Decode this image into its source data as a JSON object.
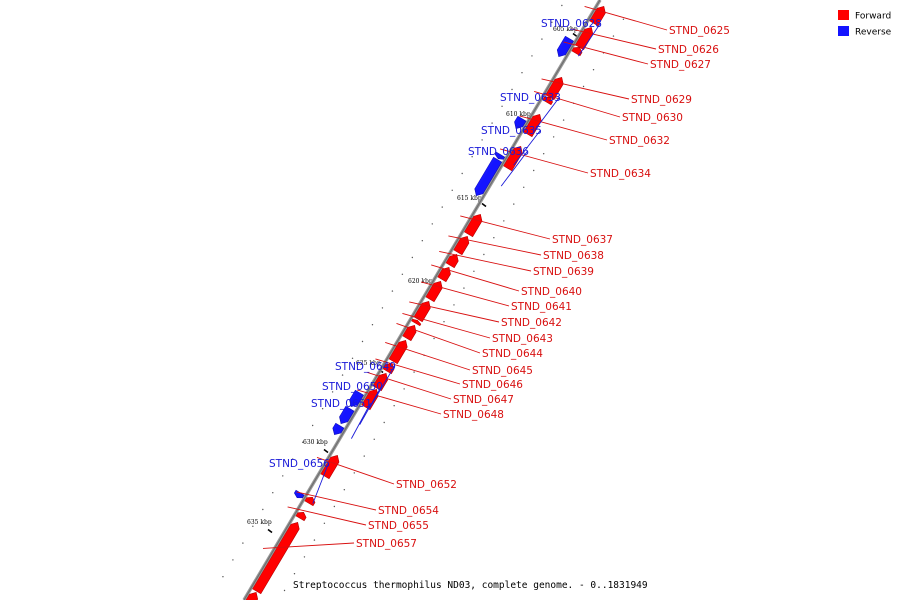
{
  "legend": [
    {
      "label": "Forward",
      "color": "#ff0000"
    },
    {
      "label": "Reverse",
      "color": "#1414ff"
    }
  ],
  "footer_title": "Streptococcus thermophilus ND03, complete genome. - 0..1831949",
  "ticks": [
    "605 kbp",
    "610 kbp",
    "615 kbp",
    "620 kbp",
    "625 kbp",
    "630 kbp",
    "635 kbp"
  ],
  "genes": [
    {
      "id": "STND_0625",
      "strand": "forward"
    },
    {
      "id": "STND_0626",
      "strand": "forward"
    },
    {
      "id": "STND_0627",
      "strand": "forward"
    },
    {
      "id": "STND_0628",
      "strand": "reverse"
    },
    {
      "id": "STND_0629",
      "strand": "forward"
    },
    {
      "id": "STND_0630",
      "strand": "forward"
    },
    {
      "id": "STND_0632",
      "strand": "forward"
    },
    {
      "id": "STND_0633",
      "strand": "reverse"
    },
    {
      "id": "STND_0634",
      "strand": "forward"
    },
    {
      "id": "STND_0635",
      "strand": "reverse"
    },
    {
      "id": "STND_0636",
      "strand": "reverse"
    },
    {
      "id": "STND_0637",
      "strand": "forward"
    },
    {
      "id": "STND_0638",
      "strand": "forward"
    },
    {
      "id": "STND_0639",
      "strand": "forward"
    },
    {
      "id": "STND_0640",
      "strand": "forward"
    },
    {
      "id": "STND_0641",
      "strand": "forward"
    },
    {
      "id": "STND_0642",
      "strand": "forward"
    },
    {
      "id": "STND_0643",
      "strand": "forward"
    },
    {
      "id": "STND_0644",
      "strand": "forward"
    },
    {
      "id": "STND_0645",
      "strand": "forward"
    },
    {
      "id": "STND_0646",
      "strand": "forward"
    },
    {
      "id": "STND_0647",
      "strand": "forward"
    },
    {
      "id": "STND_0648",
      "strand": "forward"
    },
    {
      "id": "STND_0649",
      "strand": "reverse"
    },
    {
      "id": "STND_0650",
      "strand": "reverse"
    },
    {
      "id": "STND_0651",
      "strand": "reverse"
    },
    {
      "id": "STND_0652",
      "strand": "forward"
    },
    {
      "id": "STND_0654",
      "strand": "forward"
    },
    {
      "id": "STND_0655",
      "strand": "forward"
    },
    {
      "id": "STND_0656",
      "strand": "reverse"
    },
    {
      "id": "STND_0657",
      "strand": "forward"
    }
  ]
}
